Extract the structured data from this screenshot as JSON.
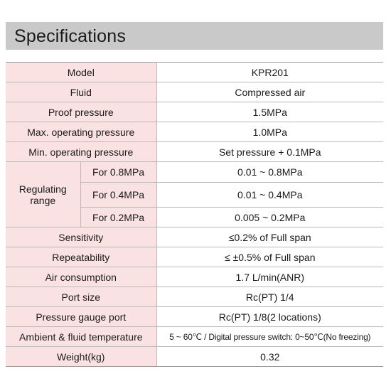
{
  "title": "Specifications",
  "rows": {
    "model": {
      "label": "Model",
      "value": "KPR201"
    },
    "fluid": {
      "label": "Fluid",
      "value": "Compressed air"
    },
    "proof": {
      "label": "Proof pressure",
      "value": "1.5MPa"
    },
    "max_op": {
      "label": "Max. operating pressure",
      "value": "1.0MPa"
    },
    "min_op": {
      "label": "Min. operating pressure",
      "value": "Set pressure + 0.1MPa"
    },
    "range": {
      "label_line1": "Regulating",
      "label_line2": "range",
      "items": [
        {
          "label": "For 0.8MPa",
          "value": "0.01 ~ 0.8MPa"
        },
        {
          "label": "For 0.4MPa",
          "value": "0.01 ~ 0.4MPa"
        },
        {
          "label": "For 0.2MPa",
          "value": "0.005 ~ 0.2MPa"
        }
      ]
    },
    "sensitivity": {
      "label": "Sensitivity",
      "value": "≤0.2% of Full span"
    },
    "repeatability": {
      "label": "Repeatability",
      "value": "≤ ±0.5% of Full span"
    },
    "air": {
      "label": "Air consumption",
      "value": "1.7 L/min(ANR)"
    },
    "port": {
      "label": "Port size",
      "value": "Rc(PT) 1/4"
    },
    "gauge": {
      "label": "Pressure gauge port",
      "value": "Rc(PT) 1/8(2 locations)"
    },
    "ambient": {
      "label": "Ambient & fluid temperature",
      "value": "5 ~ 60℃ / Digital pressure switch: 0~50℃(No freezing)"
    },
    "weight": {
      "label": "Weight(kg)",
      "value": "0.32"
    }
  },
  "colors": {
    "header_bg": "#c9c9c9",
    "label_bg": "#fbe2e2",
    "border": "#b9b9b9"
  }
}
